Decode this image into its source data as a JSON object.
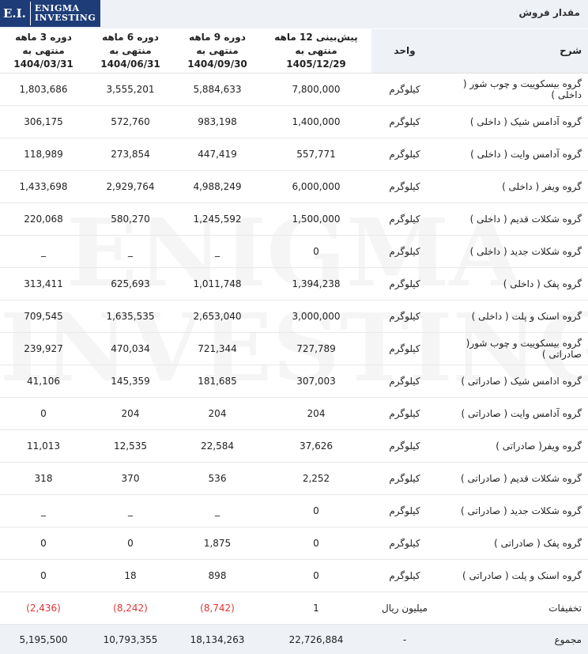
{
  "header": {
    "logo_mark": "E.I.",
    "logo_line1": "ENIGMA",
    "logo_line2": "INVESTING",
    "title": "مقدار فروش"
  },
  "watermark": {
    "line1": "ENIGMA",
    "line2": "INVESTING"
  },
  "columns": {
    "desc": "شرح",
    "unit": "واحد",
    "p12_l1": "پیش‌بینی 12 ماهه منتهی به",
    "p12_l2": "1405/12/29",
    "p9_l1": "دوره 9 ماهه منتهی به",
    "p9_l2": "1404/09/30",
    "p6_l1": "دوره 6 ماهه منتهی به",
    "p6_l2": "1404/06/31",
    "p3_l1": "دوره 3 ماهه منتهی به",
    "p3_l2": "1404/03/31"
  },
  "rows": [
    {
      "desc": "گروه بیسکوییت و چوب شور ( داخلی )",
      "unit": "کیلوگرم",
      "p12": "7,800,000",
      "p9": "5,884,633",
      "p6": "3,555,201",
      "p3": "1,803,686"
    },
    {
      "desc": "گروه آدامس شیک ( داخلی )",
      "unit": "کیلوگرم",
      "p12": "1,400,000",
      "p9": "983,198",
      "p6": "572,760",
      "p3": "306,175"
    },
    {
      "desc": "گروه آدامس وایت ( داخلی )",
      "unit": "کیلوگرم",
      "p12": "557,771",
      "p9": "447,419",
      "p6": "273,854",
      "p3": "118,989"
    },
    {
      "desc": "گروه ویفر ( داخلی )",
      "unit": "کیلوگرم",
      "p12": "6,000,000",
      "p9": "4,988,249",
      "p6": "2,929,764",
      "p3": "1,433,698"
    },
    {
      "desc": "گروه شکلات قدیم ( داخلی )",
      "unit": "کیلوگرم",
      "p12": "1,500,000",
      "p9": "1,245,592",
      "p6": "580,270",
      "p3": "220,068"
    },
    {
      "desc": "گروه شکلات جدید ( داخلی )",
      "unit": "کیلوگرم",
      "p12": "0",
      "p9": "_",
      "p6": "_",
      "p3": "_"
    },
    {
      "desc": "گروه پفک ( داخلی )",
      "unit": "کیلوگرم",
      "p12": "1,394,238",
      "p9": "1,011,748",
      "p6": "625,693",
      "p3": "313,411"
    },
    {
      "desc": "گروه اسنک و پلت ( داخلی )",
      "unit": "کیلوگرم",
      "p12": "3,000,000",
      "p9": "2,653,040",
      "p6": "1,635,535",
      "p3": "709,545"
    },
    {
      "desc": "گروه بیسکوییت و چوب شور( صادراتی )",
      "unit": "کیلوگرم",
      "p12": "727,789",
      "p9": "721,344",
      "p6": "470,034",
      "p3": "239,927"
    },
    {
      "desc": "گروه ادامس شیک ( صادراتی )",
      "unit": "کیلوگرم",
      "p12": "307,003",
      "p9": "181,685",
      "p6": "145,359",
      "p3": "41,106"
    },
    {
      "desc": "گروه آدامس وایت ( صادراتی )",
      "unit": "کیلوگرم",
      "p12": "204",
      "p9": "204",
      "p6": "204",
      "p3": "0"
    },
    {
      "desc": "گروه ویفر( صادراتی )",
      "unit": "کیلوگرم",
      "p12": "37,626",
      "p9": "22,584",
      "p6": "12,535",
      "p3": "11,013"
    },
    {
      "desc": "گروه شکلات قدیم ( صادراتی )",
      "unit": "کیلوگرم",
      "p12": "2,252",
      "p9": "536",
      "p6": "370",
      "p3": "318"
    },
    {
      "desc": "گروه شکلات جدید ( صادراتی )",
      "unit": "کیلوگرم",
      "p12": "0",
      "p9": "_",
      "p6": "_",
      "p3": "_"
    },
    {
      "desc": "گروه پفک ( صادراتی )",
      "unit": "کیلوگرم",
      "p12": "0",
      "p9": "1,875",
      "p6": "0",
      "p3": "0"
    },
    {
      "desc": "گروه اسنک و پلت ( صادراتی )",
      "unit": "کیلوگرم",
      "p12": "0",
      "p9": "898",
      "p6": "18",
      "p3": "0"
    },
    {
      "desc": "تخفیفات",
      "unit": "میلیون ریال",
      "p12": "1",
      "p9": "(8,742)",
      "p6": "(8,242)",
      "p3": "(2,436)",
      "negative": true
    }
  ],
  "total": {
    "desc": "مجموع",
    "unit": "-",
    "p12": "22,726,884",
    "p9": "18,134,263",
    "p6": "10,793,355",
    "p3": "5,195,500"
  },
  "colors": {
    "header_bg": "#eef1f6",
    "logo_bg": "#1e3d78",
    "negative": "#e03535"
  }
}
